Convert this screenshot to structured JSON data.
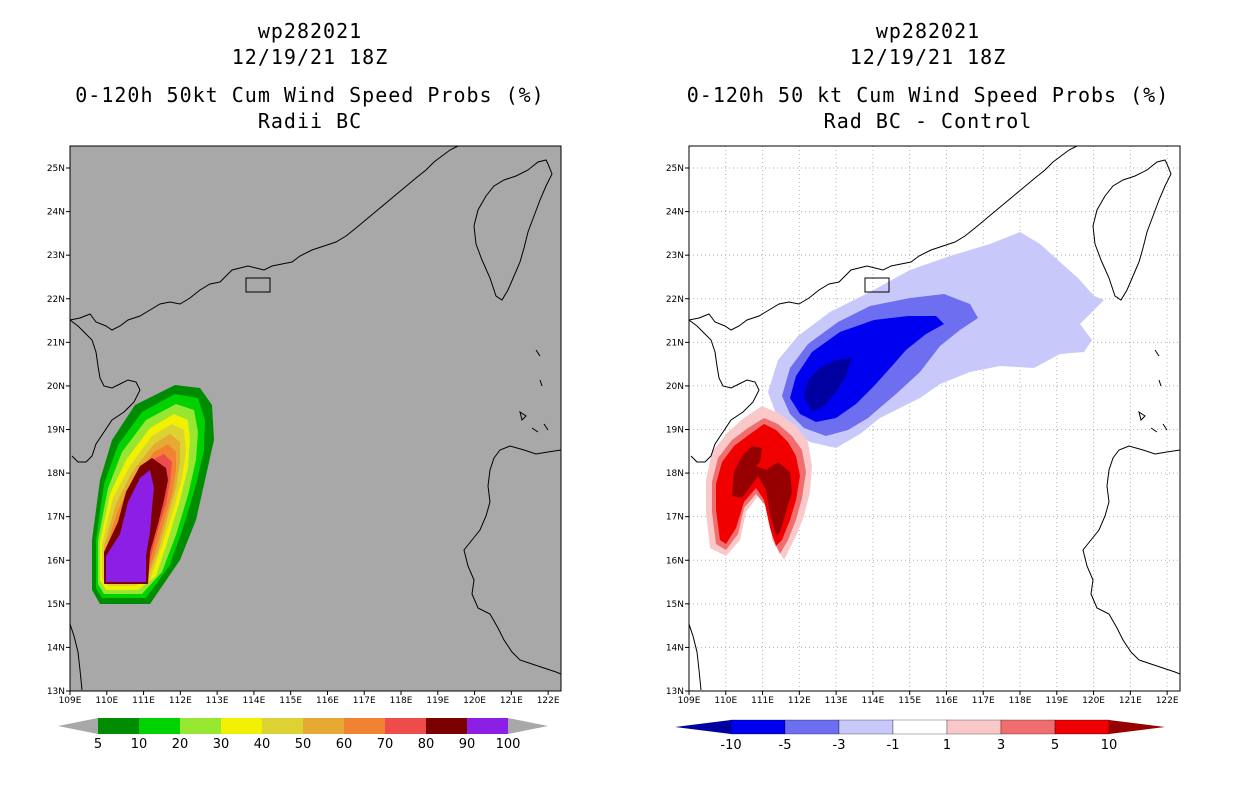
{
  "left": {
    "title_id": "wp282021",
    "title_date": "12/19/21 18Z",
    "title_line3": "0-120h 50kt Cum Wind Speed Probs (%)",
    "title_line4": "Radii BC",
    "colorbar_labels": [
      "5",
      "10",
      "20",
      "30",
      "40",
      "50",
      "60",
      "70",
      "80",
      "90",
      "100"
    ],
    "colorbar_colors": [
      "#008c00",
      "#00d200",
      "#96e632",
      "#f0f000",
      "#dcd232",
      "#e6aa32",
      "#f08232",
      "#f04b4b",
      "#7d0000",
      "#8c1ee6"
    ],
    "background_color": "#a8a8a8"
  },
  "right": {
    "title_id": "wp282021",
    "title_date": "12/19/21 18Z",
    "title_line3": "0-120h 50 kt Cum Wind Speed Probs (%)",
    "title_line4": "Rad BC - Control",
    "colorbar_labels": [
      "-10",
      "-5",
      "-3",
      "-1",
      "1",
      "3",
      "5",
      "10"
    ],
    "colorbar_colors": [
      "#0000a0",
      "#0000f0",
      "#6e6ef0",
      "#c8c8fa",
      "#ffffff",
      "#fac8c8",
      "#f06e6e",
      "#f00000",
      "#960000"
    ]
  },
  "axes": {
    "lat_labels": [
      "25N",
      "24N",
      "23N",
      "22N",
      "21N",
      "20N",
      "19N",
      "18N",
      "17N",
      "16N",
      "15N",
      "14N",
      "13N"
    ],
    "lon_labels": [
      "109E",
      "110E",
      "111E",
      "112E",
      "113E",
      "114E",
      "115E",
      "116E",
      "117E",
      "118E",
      "119E",
      "120E",
      "121E",
      "122E"
    ]
  }
}
